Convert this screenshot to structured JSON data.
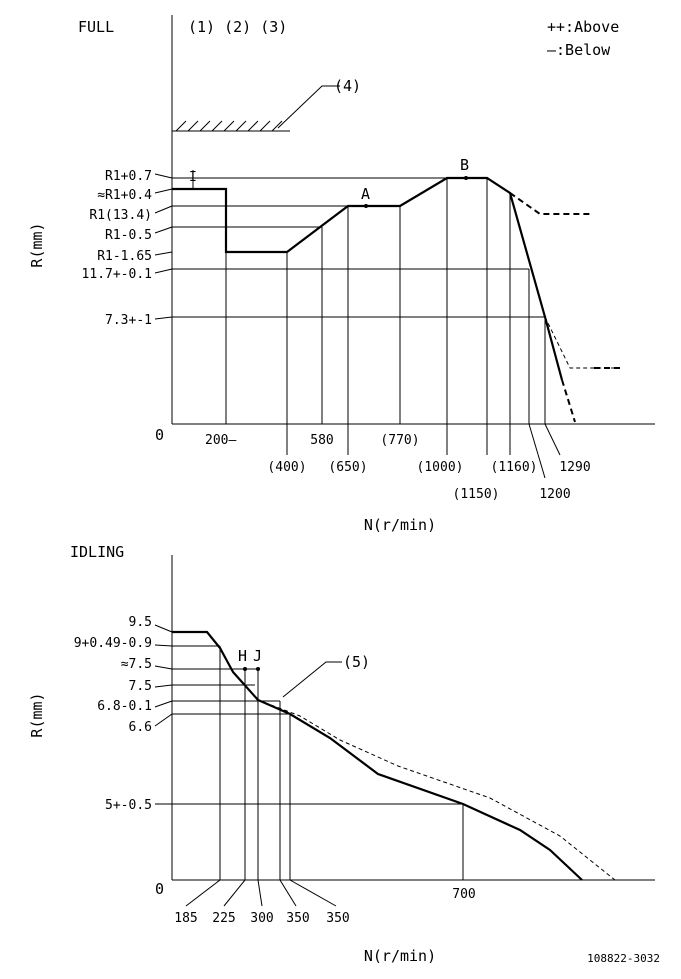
{
  "full": {
    "title": "FULL",
    "markers": "(1) (2) (3)",
    "legend_above": "++:Above",
    "legend_below": "—:Below",
    "callout_4": "(4)",
    "point_a": "A",
    "point_b": "B",
    "point_i": "I",
    "y_axis_label": "R(mm)",
    "x_axis_label": "N(r/min)",
    "origin": "0",
    "y_labels": [
      "R1+0.7",
      "≈R1+0.4",
      "R1(13.4)",
      "R1-0.5",
      "R1-1.65",
      "11.7+-0.1",
      "7.3+-1"
    ],
    "x_labels": [
      "200—",
      "(400)",
      "580",
      "(650)",
      "(770)",
      "(1000)",
      "(1150)",
      "(1160)",
      "1200",
      "1290"
    ]
  },
  "idling": {
    "title": "IDLING",
    "callout_5": "(5)",
    "point_h": "H",
    "point_j": "J",
    "y_axis_label": "R(mm)",
    "x_axis_label": "N(r/min)",
    "origin": "0",
    "y_labels": [
      "9.5",
      "9+0.49-0.9",
      "≈7.5",
      "7.5",
      "6.8-0.1",
      "6.6",
      "5+-0.5"
    ],
    "x_labels": [
      "185",
      "225",
      "300",
      "350",
      "350",
      "700"
    ]
  },
  "doc_code": "108822-3032"
}
